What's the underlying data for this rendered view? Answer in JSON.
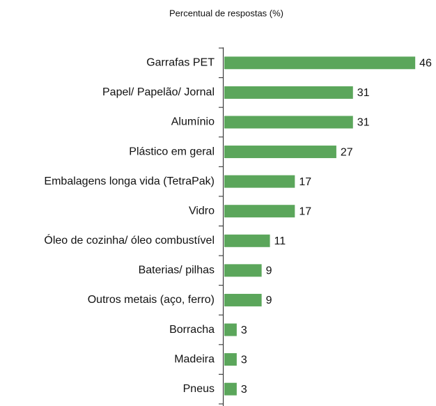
{
  "chart_data": {
    "type": "bar",
    "orientation": "horizontal",
    "subtitle": "Percentual de respostas (%)",
    "categories": [
      "Garrafas PET",
      "Papel/ Papelão/ Jornal",
      "Alumínio",
      "Plástico em geral",
      "Embalagens longa vida (TetraPak)",
      "Vidro",
      "Óleo de cozinha/ óleo combustível",
      "Baterias/ pilhas",
      "Outros metais (aço, ferro)",
      "Borracha",
      "Madeira",
      "Pneus"
    ],
    "values": [
      46,
      31,
      31,
      27,
      17,
      17,
      11,
      9,
      9,
      3,
      3,
      3
    ],
    "color": "#5ba65b",
    "xlim": [
      0,
      50
    ]
  }
}
